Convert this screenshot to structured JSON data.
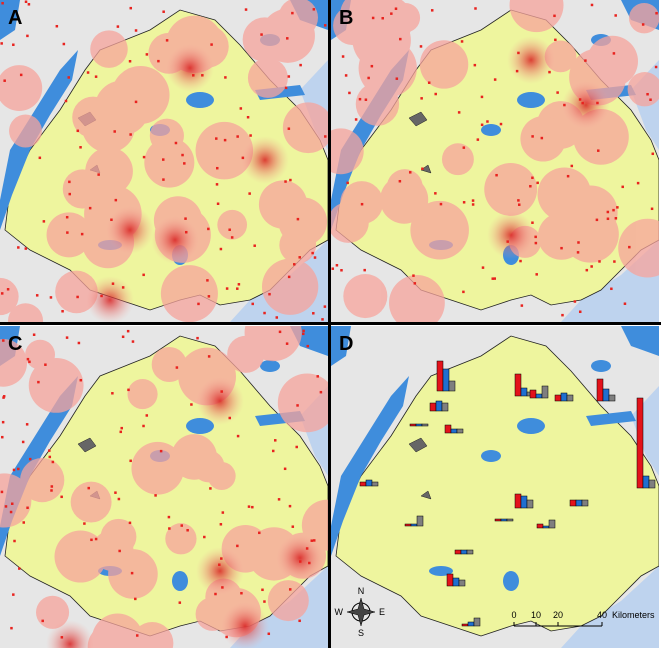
{
  "panels": [
    {
      "label": "A"
    },
    {
      "label": "B"
    },
    {
      "label": "C"
    },
    {
      "label": "D"
    }
  ],
  "scale_bar": {
    "ticks": [
      0,
      10,
      20,
      40
    ],
    "unit": "Kilometers"
  },
  "compass": {
    "north": "N",
    "south": "S",
    "east": "E",
    "west": "W"
  },
  "site_bars": {
    "colors": [
      "#e3121b",
      "#1f6fd0",
      "#7f7f7f"
    ],
    "sites": [
      {
        "values": [
          30,
          22,
          10
        ]
      },
      {
        "values": [
          22,
          8,
          4
        ]
      },
      {
        "values": [
          6,
          8,
          6
        ]
      },
      {
        "values": [
          22,
          12,
          6
        ]
      },
      {
        "values": [
          90,
          12,
          8
        ]
      },
      {
        "values": [
          8,
          10,
          8
        ]
      },
      {
        "values": [
          8,
          4,
          4
        ]
      },
      {
        "values": [
          2,
          2,
          2
        ]
      },
      {
        "values": [
          4,
          6,
          4
        ]
      },
      {
        "values": [
          14,
          12,
          8
        ]
      },
      {
        "values": [
          6,
          6,
          6
        ]
      },
      {
        "values": [
          4,
          4,
          4
        ]
      },
      {
        "values": [
          2,
          2,
          10
        ]
      },
      {
        "values": [
          2,
          2,
          2
        ]
      },
      {
        "values": [
          4,
          2,
          8
        ]
      },
      {
        "values": [
          12,
          8,
          6
        ]
      },
      {
        "values": [
          2,
          4,
          8
        ]
      },
      {
        "values": [
          8,
          4,
          12
        ]
      }
    ]
  }
}
